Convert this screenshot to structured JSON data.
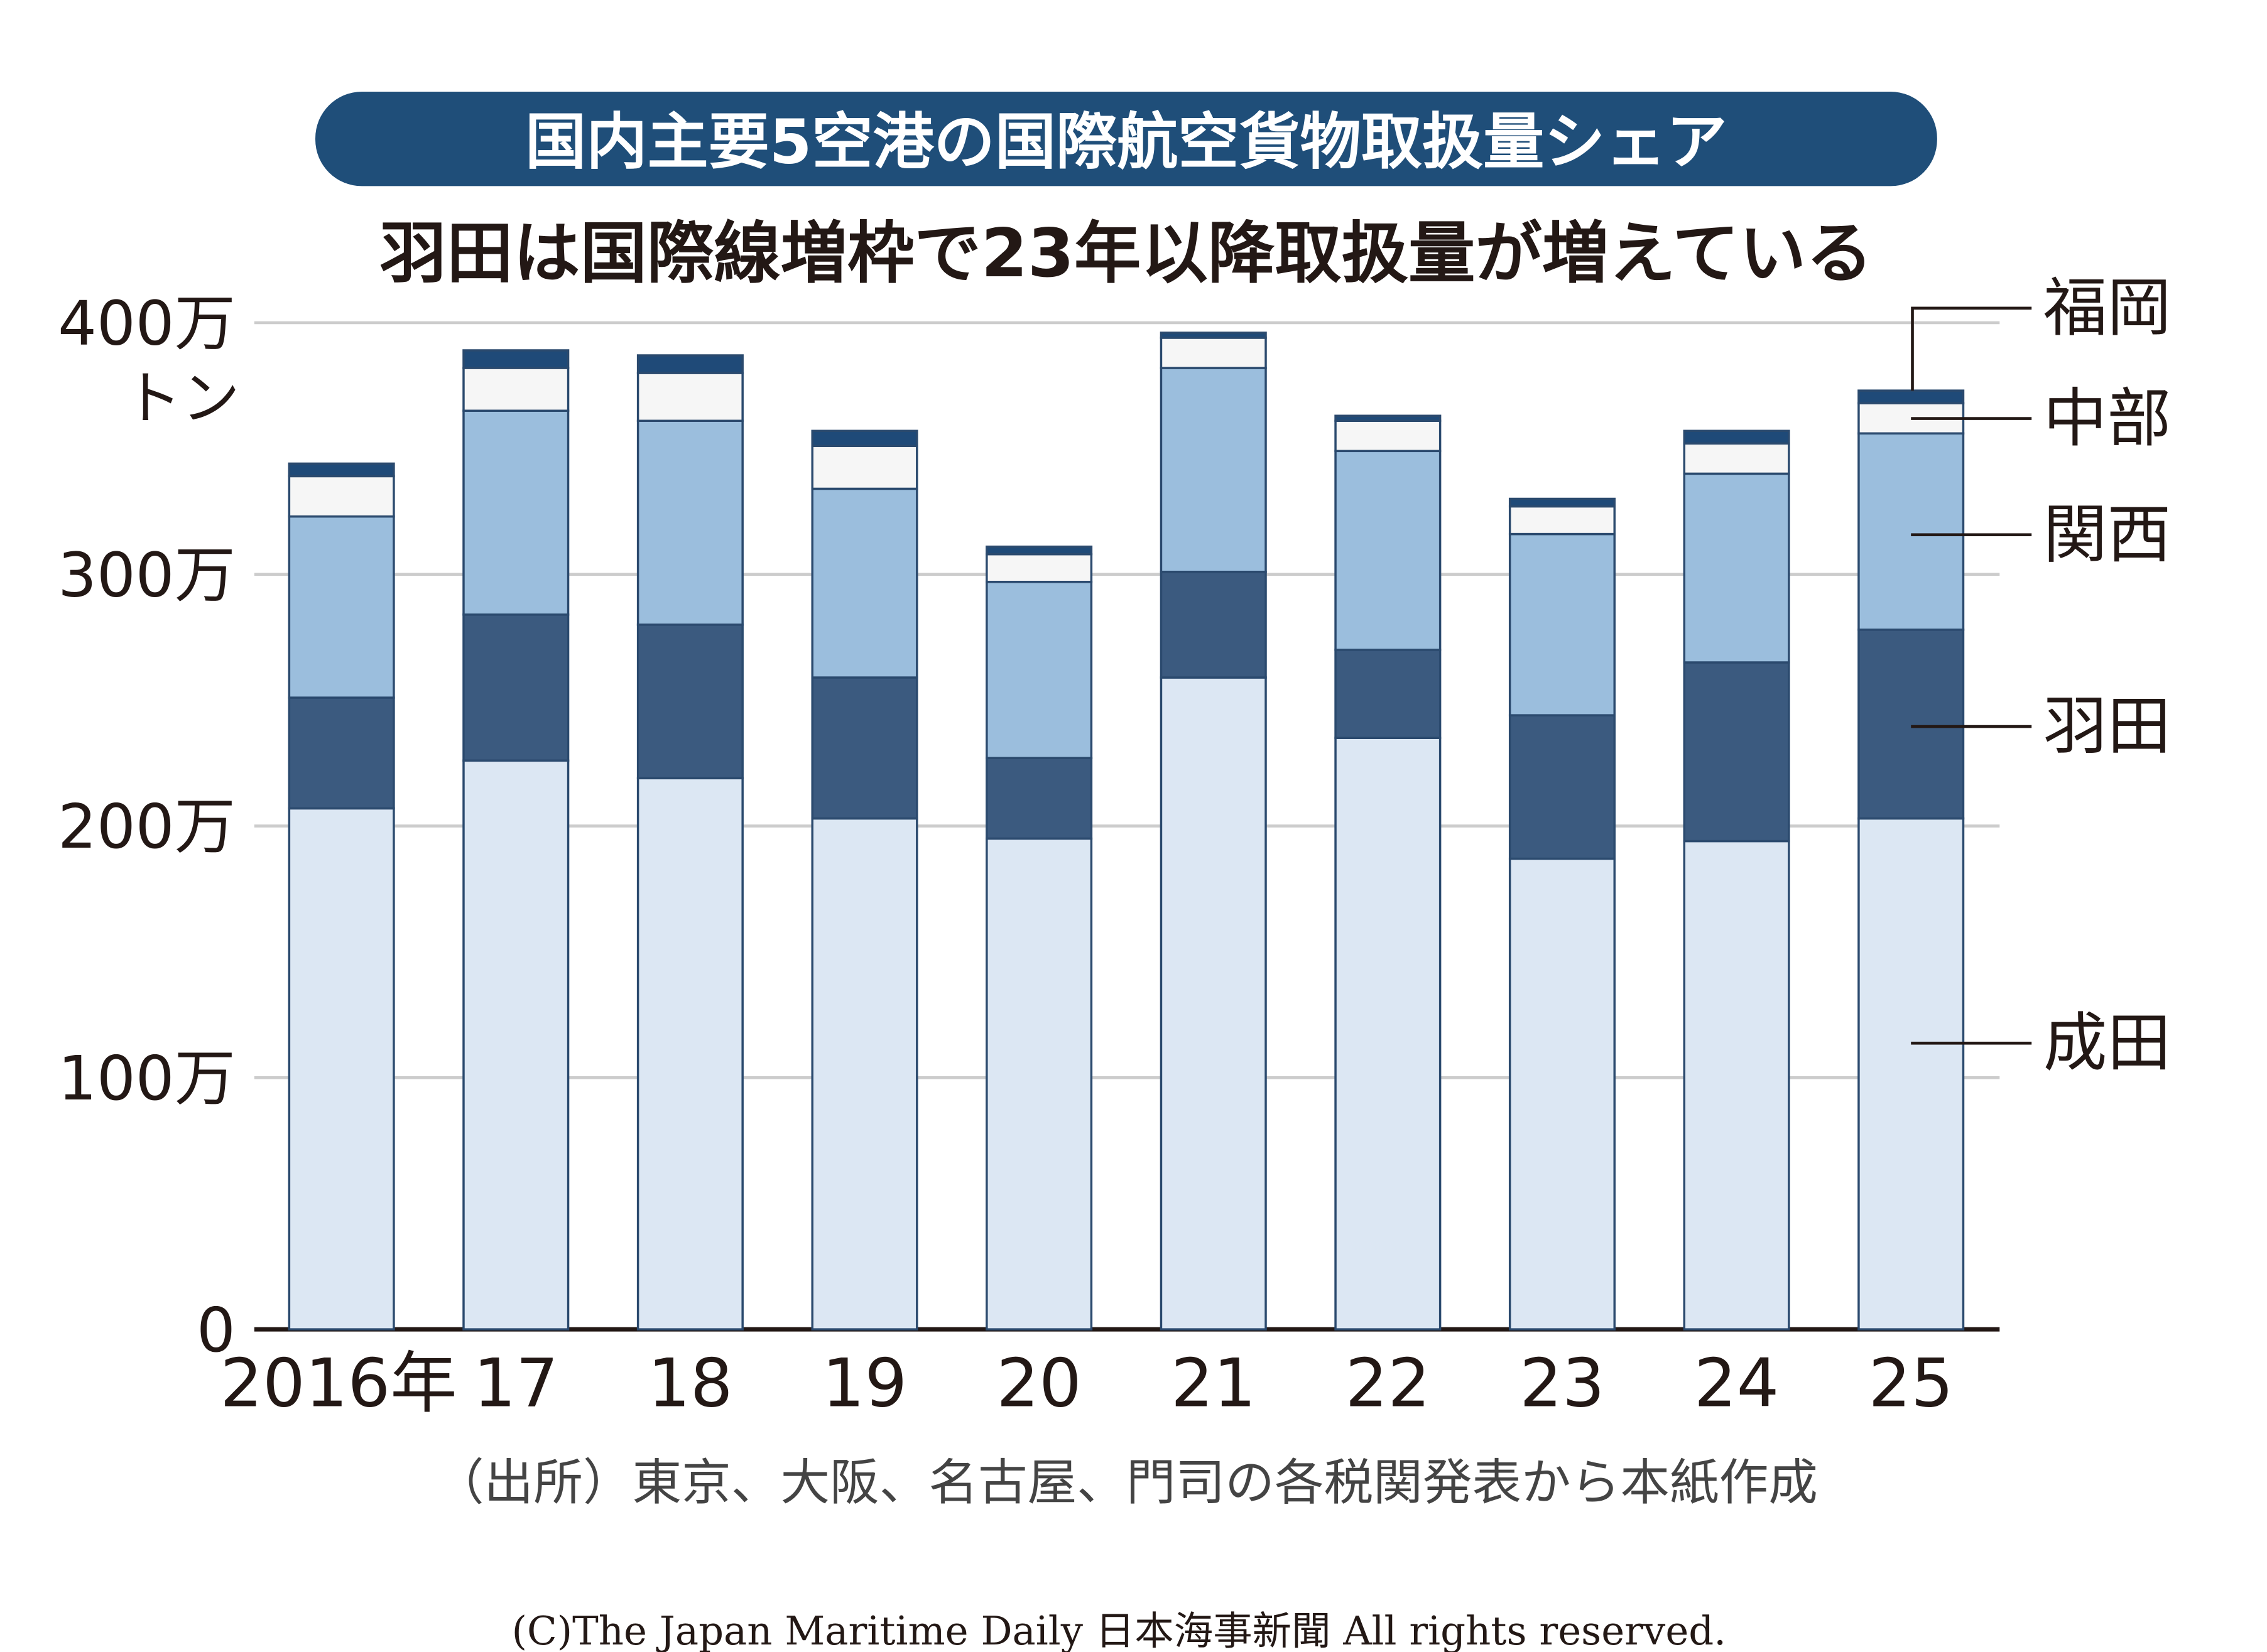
{
  "chart_data": {
    "type": "bar",
    "stacked": true,
    "banner": "国内主要5空港の国際航空貨物取扱量シェア",
    "title": "羽田は国際線増枠で23年以降取扱量が増えている",
    "ylabel": "トン",
    "ylim": [
      0,
      400
    ],
    "yunit": "万トン",
    "yticks": [
      "0",
      "100万",
      "200万",
      "300万",
      "400万"
    ],
    "categories": [
      "2016年",
      "17",
      "18",
      "19",
      "20",
      "21",
      "22",
      "23",
      "24",
      "25"
    ],
    "series": [
      {
        "name": "成田",
        "color": "#dce7f3",
        "values": [
          207,
          226,
          219,
          203,
          195,
          259,
          235,
          187,
          194,
          203
        ]
      },
      {
        "name": "羽田",
        "color": "#3b5a7f",
        "values": [
          44,
          58,
          61,
          56,
          32,
          42,
          35,
          57,
          71,
          75
        ]
      },
      {
        "name": "関西",
        "color": "#9bbedd",
        "values": [
          72,
          81,
          81,
          75,
          70,
          81,
          79,
          72,
          75,
          78
        ]
      },
      {
        "name": "中部",
        "color": "#f6f6f6",
        "values": [
          16,
          17,
          19,
          17,
          11,
          12,
          12,
          11,
          12,
          12
        ]
      },
      {
        "name": "福岡",
        "color": "#1f4a78",
        "values": [
          5,
          7,
          7,
          6,
          3,
          2,
          2,
          3,
          5,
          5
        ]
      }
    ],
    "grid": true,
    "legend": "right",
    "source": "（出所）東京、大阪、名古屋、門司の各税関発表から本紙作成"
  },
  "copyright": "(C)The Japan Maritime Daily 日本海事新聞 All rights reserved.",
  "colors": {
    "banner": "#1f4e79",
    "grid": "#cccccc",
    "axis": "#231815",
    "bar_stroke": "#2b4a6e"
  }
}
